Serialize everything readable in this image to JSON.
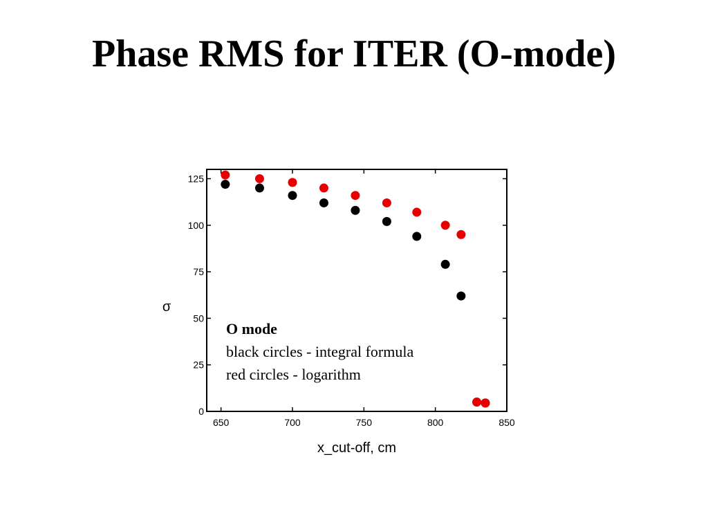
{
  "slide": {
    "title": "Phase RMS for ITER (O-mode)"
  },
  "chart_data": {
    "type": "scatter",
    "xlabel": "x_cut-off, cm",
    "ylabel": "σ",
    "xlim": [
      640,
      850
    ],
    "ylim": [
      0,
      130
    ],
    "xticks": [
      650,
      700,
      750,
      800,
      850
    ],
    "yticks": [
      0,
      25,
      50,
      75,
      100,
      125
    ],
    "grid": false,
    "annotation": {
      "title": "O mode",
      "lines": [
        "black circles - integral formula",
        "red circles - logarithm"
      ]
    },
    "series": [
      {
        "color": "#000000",
        "points": [
          [
            653,
            122
          ],
          [
            677,
            120
          ],
          [
            700,
            116
          ],
          [
            722,
            112
          ],
          [
            744,
            108
          ],
          [
            766,
            102
          ],
          [
            787,
            94
          ],
          [
            807,
            79
          ],
          [
            818,
            62
          ],
          [
            829,
            5
          ],
          [
            835,
            4.5
          ]
        ]
      },
      {
        "color": "#e60000",
        "points": [
          [
            653,
            127
          ],
          [
            677,
            125
          ],
          [
            700,
            123
          ],
          [
            722,
            120
          ],
          [
            744,
            116
          ],
          [
            766,
            112
          ],
          [
            787,
            107
          ],
          [
            807,
            100
          ],
          [
            818,
            95
          ],
          [
            829,
            5
          ],
          [
            835,
            4.5
          ]
        ]
      }
    ]
  }
}
